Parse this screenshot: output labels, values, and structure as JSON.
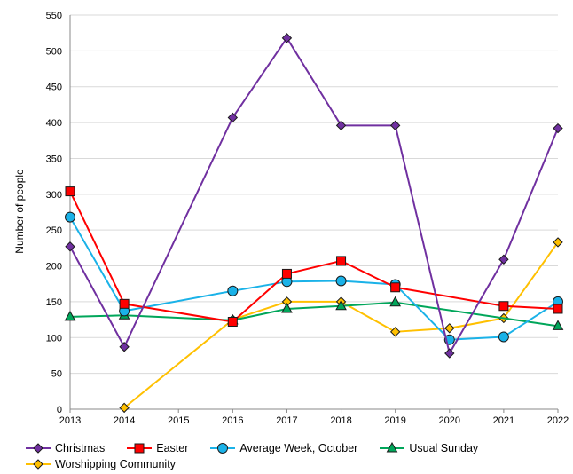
{
  "chart_data": {
    "type": "line",
    "title": "",
    "xlabel": "",
    "ylabel": "Number of people",
    "ylim": [
      0,
      550
    ],
    "yticks": [
      0,
      50,
      100,
      150,
      200,
      250,
      300,
      350,
      400,
      450,
      500,
      550
    ],
    "xlim": [
      2013,
      2022
    ],
    "xticks": [
      "2013",
      "2014",
      "2015",
      "2016",
      "2017",
      "2018",
      "2019",
      "2020",
      "2021",
      "2022"
    ],
    "grid": "horizontal",
    "legend_position": "bottom",
    "series": [
      {
        "name": "Christmas",
        "color": "#7030a0",
        "marker": "diamond",
        "x": [
          2013,
          2014,
          2016,
          2017,
          2018,
          2019,
          2020,
          2021,
          2022
        ],
        "values": [
          227,
          87,
          407,
          518,
          396,
          396,
          78,
          209,
          392
        ]
      },
      {
        "name": "Easter",
        "color": "#ff0000",
        "marker": "square",
        "x": [
          2013,
          2014,
          2016,
          2017,
          2018,
          2019,
          2021,
          2022
        ],
        "values": [
          304,
          147,
          122,
          189,
          207,
          170,
          144,
          140
        ]
      },
      {
        "name": "Average Week, October",
        "color": "#1ab2e8",
        "marker": "circle",
        "x": [
          2013,
          2014,
          2016,
          2017,
          2018,
          2019,
          2020,
          2021,
          2022
        ],
        "values": [
          268,
          137,
          165,
          178,
          179,
          174,
          97,
          101,
          150
        ]
      },
      {
        "name": "Usual Sunday",
        "color": "#00a65a",
        "marker": "triangle",
        "x": [
          2013,
          2014,
          2016,
          2017,
          2018,
          2019,
          2022
        ],
        "values": [
          129,
          131,
          124,
          140,
          144,
          149,
          116
        ]
      },
      {
        "name": "Worshipping Community",
        "color": "#ffc000",
        "marker": "diamond",
        "x": [
          2014,
          2016,
          2017,
          2018,
          2019,
          2020,
          2021,
          2022
        ],
        "values": [
          2,
          125,
          150,
          150,
          108,
          113,
          127,
          233
        ]
      }
    ]
  }
}
